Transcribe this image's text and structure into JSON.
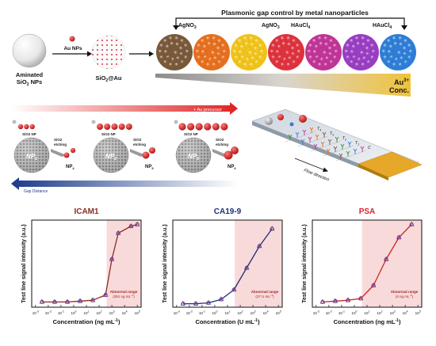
{
  "panel_a": {
    "title": "Plasmonic gap control by metal nanoparticles",
    "aminated_line1": "Aminated",
    "aminated_line2": "SiO",
    "aminated_sub": "2",
    "aminated_line2_tail": " NPs",
    "au_nps": "Au NPs",
    "sio2au_prefix": "SiO",
    "sio2au_sub": "2",
    "sio2au_tail": "@Au",
    "reagent_1": "AgNO",
    "reagent_1_sub": "3",
    "reagent_2": "AgNO",
    "reagent_2_sub": "3",
    "reagent_3": "HAuCl",
    "reagent_3_sub": "4",
    "reagent_4": "HAuCl",
    "reagent_4_sub": "4",
    "ag_label": "Ag",
    "ag_sup": "+",
    "ag_conc": "Conc.",
    "au_label": "Au",
    "au_sup": "3+",
    "au_conc": "Conc.",
    "colors": [
      "#7a5a3a",
      "#e8701e",
      "#f2c51b",
      "#e0333e",
      "#c23598",
      "#9a3fc4",
      "#2f7fd8"
    ]
  },
  "panel_b": {
    "arrow_text": "+ Au precursor",
    "gap_text": "Gap Distance",
    "sio2np": "SiO",
    "sio2np_sub": "2",
    "sio2np_tail": " NP",
    "sio2_etch_1": "SiO",
    "sio2_etch_sub": "2",
    "sio2_etch_2": "etching",
    "np_label": "NP",
    "np_subs": [
      "1",
      "2",
      "3"
    ],
    "np_out_subs": [
      "4",
      "5",
      "6"
    ]
  },
  "panel_c": {
    "flow_label": "Flow direction",
    "t_labels": [
      "T",
      "T",
      "T",
      "T"
    ],
    "t_subs": [
      "4",
      "3",
      "2",
      "1"
    ],
    "c_label": "C"
  },
  "charts": {
    "ylabel": "Test line signal intensity (a.u.)",
    "abnormal_title": "Abnormal range",
    "items": [
      {
        "title": "ICAM1",
        "title_color": "#8b2a22",
        "xlabel": "Concentration (ng mL",
        "xlabel_sup": "-1",
        "xlabel_tail": ")",
        "range_text": "(391 ng mL",
        "range_sup": "-1",
        "range_tail": ")",
        "line_color": "#8b2a22"
      },
      {
        "title": "CA19-9",
        "title_color": "#1d2f7a",
        "xlabel": "Concentration (U mL",
        "xlabel_sup": "-1",
        "xlabel_tail": ")",
        "range_text": "(37 U mL",
        "range_sup": "-1",
        "range_tail": ")",
        "line_color": "#1d2f7a"
      },
      {
        "title": "PSA",
        "title_color": "#d8232a",
        "xlabel": "Concentration (ng mL",
        "xlabel_sup": "-1",
        "xlabel_tail": ")",
        "range_text": "(4 ng mL",
        "range_sup": "-1",
        "range_tail": ")",
        "line_color": "#c9252a"
      }
    ],
    "ticks": [
      "10",
      "10",
      "10",
      "10",
      "10",
      "10",
      "10",
      "10",
      "10"
    ],
    "tick_sups": [
      "-3",
      "-2",
      "-1",
      "0",
      "1",
      "2",
      "3",
      "4",
      "5"
    ]
  },
  "chart_data": [
    {
      "type": "scatter",
      "title": "ICAM1",
      "xlabel": "Concentration (ng mL-1)",
      "ylabel": "Test line signal intensity (a.u.)",
      "x_scale": "log",
      "xlim": [
        0.0005,
        200000
      ],
      "x": [
        0.0032,
        0.032,
        0.32,
        3.2,
        32,
        320,
        1000,
        3200,
        32000,
        100000
      ],
      "series": [
        {
          "values": [
            0.06,
            0.06,
            0.06,
            0.07,
            0.08,
            0.14,
            0.55,
            0.85,
            0.93,
            0.95
          ]
        }
      ],
      "shaded_region": {
        "from": 391,
        "to": 200000
      }
    },
    {
      "type": "scatter",
      "title": "CA19-9",
      "xlabel": "Concentration (U mL-1)",
      "ylabel": "Test line signal intensity (a.u.)",
      "x_scale": "log",
      "xlim": [
        0.0005,
        200000
      ],
      "x": [
        0.0032,
        0.032,
        0.32,
        3.2,
        32,
        320,
        3200,
        32000
      ],
      "series": [
        {
          "values": [
            0.04,
            0.04,
            0.05,
            0.09,
            0.2,
            0.45,
            0.7,
            0.9
          ]
        }
      ],
      "shaded_region": {
        "from": 37,
        "to": 200000
      }
    },
    {
      "type": "scatter",
      "title": "PSA",
      "xlabel": "Concentration (ng mL-1)",
      "ylabel": "Test line signal intensity (a.u.)",
      "x_scale": "log",
      "xlim": [
        0.0005,
        200000
      ],
      "x": [
        0.0032,
        0.032,
        0.32,
        3.2,
        32,
        320,
        3200,
        32000
      ],
      "series": [
        {
          "values": [
            0.06,
            0.07,
            0.08,
            0.1,
            0.25,
            0.55,
            0.8,
            0.95
          ]
        }
      ],
      "shaded_region": {
        "from": 4,
        "to": 200000
      }
    }
  ]
}
